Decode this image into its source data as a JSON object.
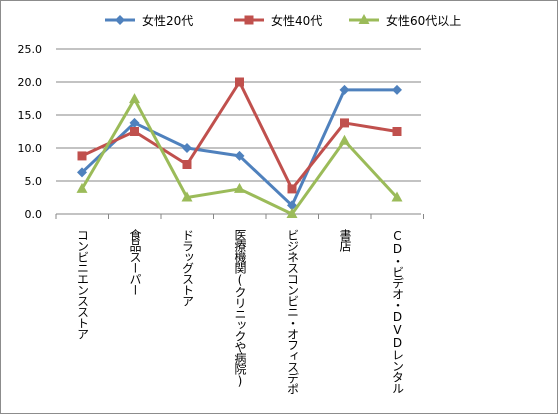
{
  "chart_data": {
    "type": "line",
    "title": "",
    "xlabel": "",
    "ylabel": "",
    "ylim": [
      0,
      25
    ],
    "yticks": [
      "0.0",
      "5.0",
      "10.0",
      "15.0",
      "20.0",
      "25.0"
    ],
    "grid": true,
    "legend_position": "top",
    "categories": [
      "コンビニエンスストア",
      "食品スーパー",
      "ドラッグストア",
      "医療機関(クリニックや病院)",
      "ビジネスコンビニ・オフィスデポ",
      "書店",
      "CD・ビデオ・DVDレンタル"
    ],
    "series": [
      {
        "name": "女性20代",
        "color": "#4f81bd",
        "marker": "diamond",
        "values": [
          6.3,
          13.8,
          10.0,
          8.8,
          1.3,
          18.8,
          18.8
        ]
      },
      {
        "name": "女性40代",
        "color": "#c0504d",
        "marker": "square",
        "values": [
          8.8,
          12.5,
          7.5,
          20.0,
          3.8,
          13.8,
          12.5
        ]
      },
      {
        "name": "女性60代以上",
        "color": "#9bbb59",
        "marker": "triangle",
        "values": [
          3.8,
          17.4,
          2.5,
          3.8,
          0.0,
          11.1,
          2.5
        ]
      }
    ]
  }
}
